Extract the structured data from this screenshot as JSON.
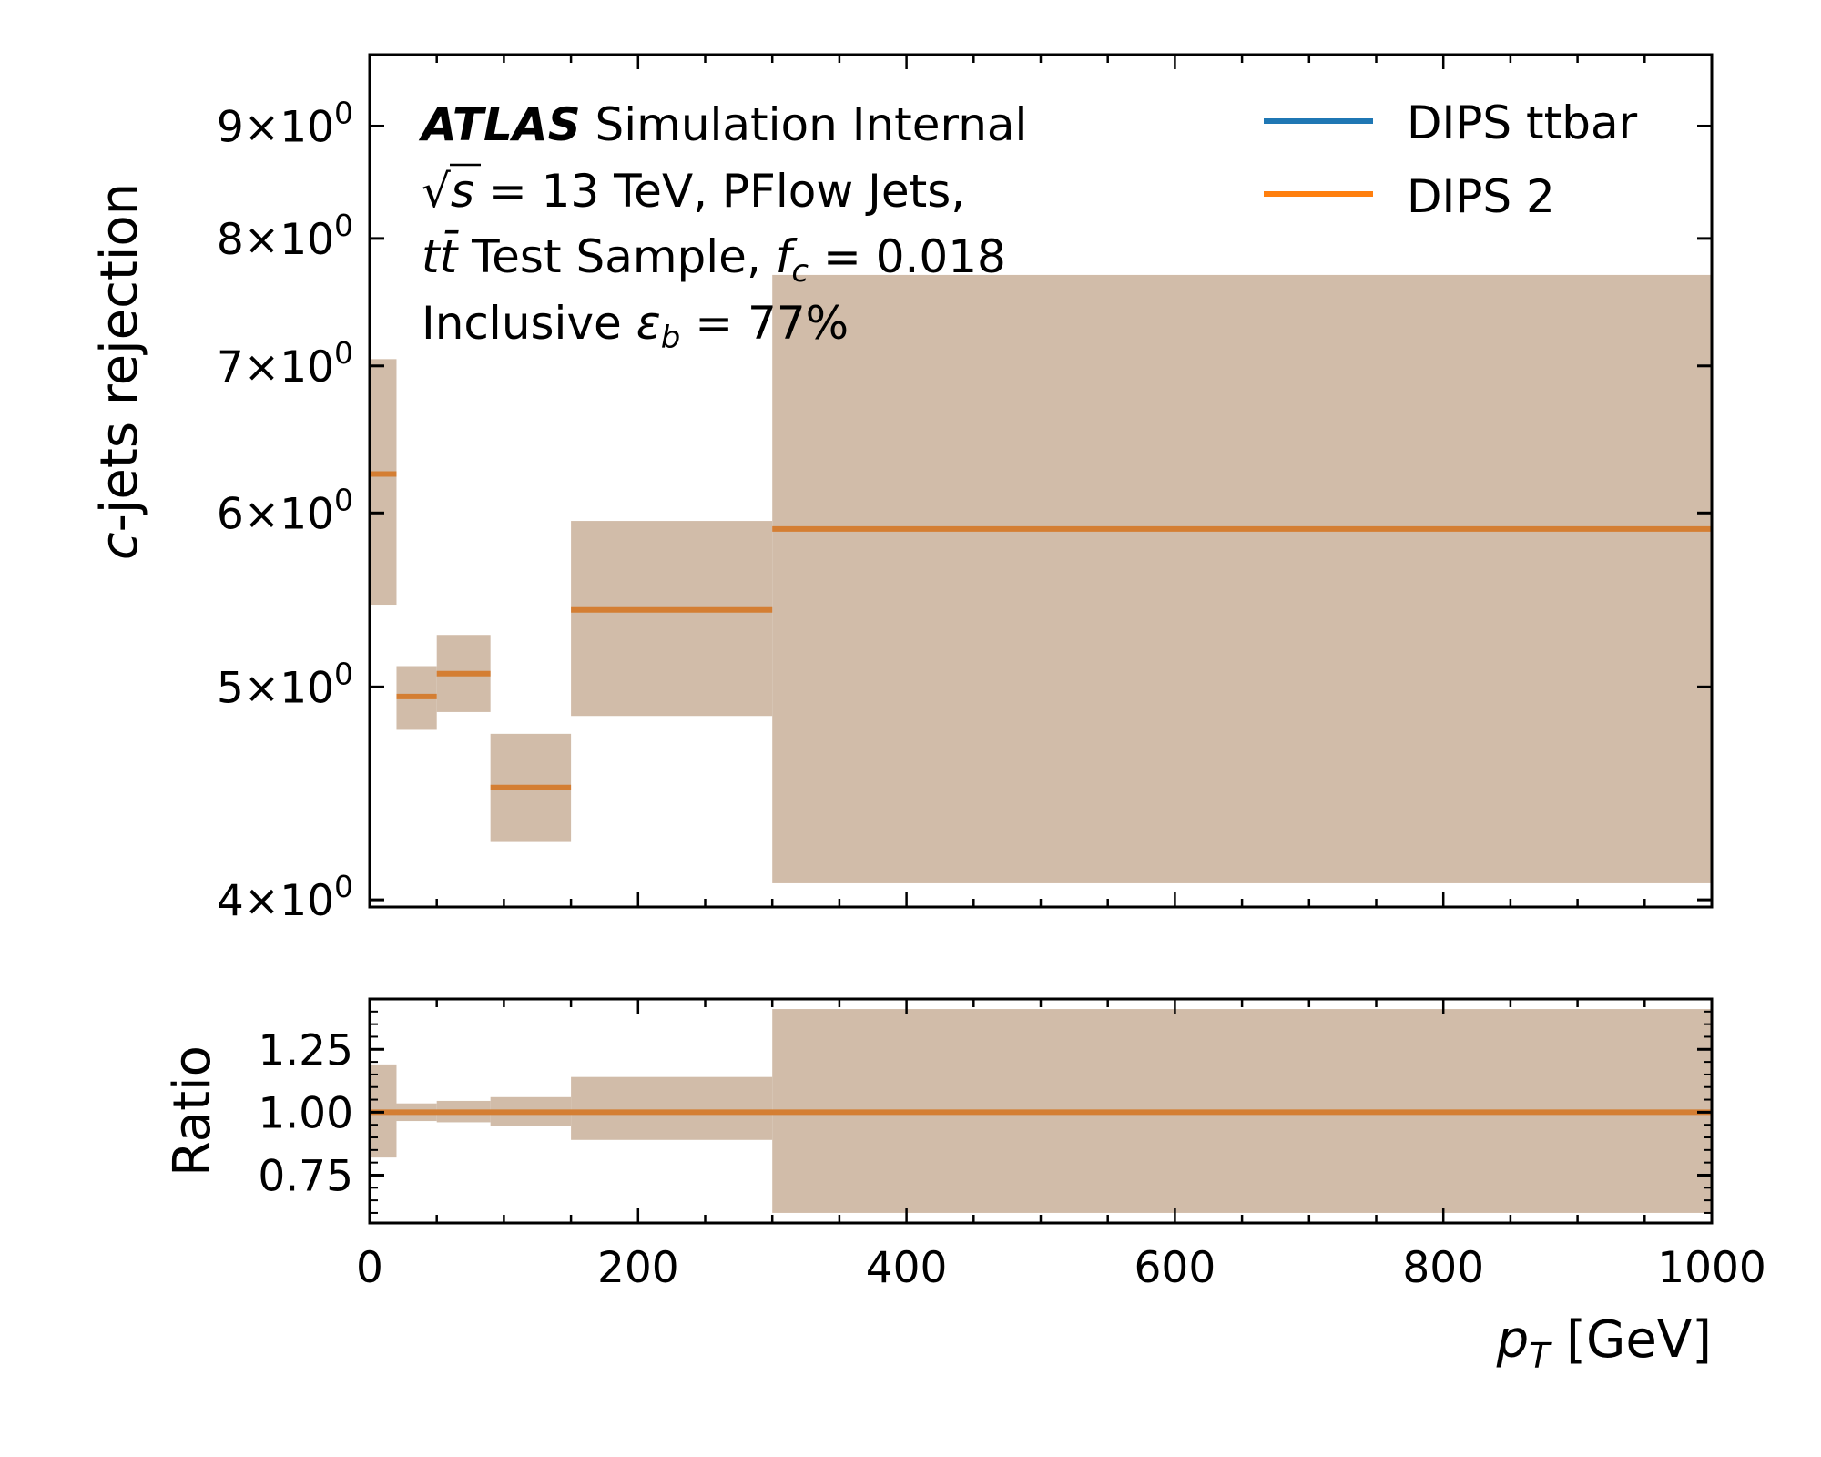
{
  "chart_data": [
    {
      "panel": "main",
      "type": "step",
      "ylabel_italic": "c",
      "ylabel_rest": "-jets rejection",
      "yscale": "log",
      "ylim": [
        3.97,
        9.7
      ],
      "xlim": [
        0,
        1000
      ],
      "yticks": [
        {
          "value": 4,
          "mantissa": "4",
          "base": "10",
          "exp": "0"
        },
        {
          "value": 5,
          "mantissa": "5",
          "base": "10",
          "exp": "0"
        },
        {
          "value": 6,
          "mantissa": "6",
          "base": "10",
          "exp": "0"
        },
        {
          "value": 7,
          "mantissa": "7",
          "base": "10",
          "exp": "0"
        },
        {
          "value": 8,
          "mantissa": "8",
          "base": "10",
          "exp": "0"
        },
        {
          "value": 9,
          "mantissa": "9",
          "base": "10",
          "exp": "0"
        }
      ],
      "bins": [
        {
          "x0": 0,
          "x1": 20,
          "value": 6.25,
          "lo": 5.45,
          "hi": 7.05
        },
        {
          "x0": 20,
          "x1": 50,
          "value": 4.95,
          "lo": 4.78,
          "hi": 5.11
        },
        {
          "x0": 50,
          "x1": 90,
          "value": 5.07,
          "lo": 4.87,
          "hi": 5.28
        },
        {
          "x0": 90,
          "x1": 150,
          "value": 4.5,
          "lo": 4.25,
          "hi": 4.76
        },
        {
          "x0": 150,
          "x1": 300,
          "value": 5.42,
          "lo": 4.85,
          "hi": 5.95
        },
        {
          "x0": 300,
          "x1": 1000,
          "value": 5.9,
          "lo": 4.07,
          "hi": 7.7
        }
      ],
      "series": [
        {
          "name": "DIPS ttbar",
          "color": "#1f77b4"
        },
        {
          "name": "DIPS 2",
          "color": "#ff7f0e"
        }
      ],
      "band_color": "#d1bca9",
      "step_color": "#d47e33",
      "annotations": {
        "atlas": "ATLAS",
        "atlas_rest": " Simulation Internal",
        "line2_sqrt": "√",
        "line2_s": "s",
        "line2_rest": " = 13 TeV, PFlow Jets,",
        "line3_tt": "tt̄",
        "line3_mid": " Test Sample, ",
        "line3_f": "f",
        "line3_sub": "c",
        "line3_rest": " = 0.018",
        "line4_pre": "Inclusive ",
        "line4_eps": "ε",
        "line4_sub": "b",
        "line4_rest": " = 77%"
      },
      "legend_position": "upper right"
    },
    {
      "panel": "ratio",
      "type": "step",
      "ylabel": "Ratio",
      "ylim": [
        0.56,
        1.45
      ],
      "xlim": [
        0,
        1000
      ],
      "yticks": [
        "1.25",
        "1.00",
        "0.75"
      ],
      "ytick_values": [
        1.25,
        1.0,
        0.75
      ],
      "xticks": [
        "0",
        "200",
        "400",
        "600",
        "800",
        "1000"
      ],
      "xtick_values": [
        0,
        200,
        400,
        600,
        800,
        1000
      ],
      "xlabel_italic": "p",
      "xlabel_sub": "T",
      "xlabel_rest": " [GeV]",
      "ratio_value": 1.0,
      "bins": [
        {
          "x0": 0,
          "x1": 20,
          "lo": 0.82,
          "hi": 1.19
        },
        {
          "x0": 20,
          "x1": 50,
          "lo": 0.965,
          "hi": 1.035
        },
        {
          "x0": 50,
          "x1": 90,
          "lo": 0.96,
          "hi": 1.045
        },
        {
          "x0": 90,
          "x1": 150,
          "lo": 0.945,
          "hi": 1.06
        },
        {
          "x0": 150,
          "x1": 300,
          "lo": 0.89,
          "hi": 1.14
        },
        {
          "x0": 300,
          "x1": 1000,
          "lo": 0.6,
          "hi": 1.41
        }
      ]
    }
  ]
}
